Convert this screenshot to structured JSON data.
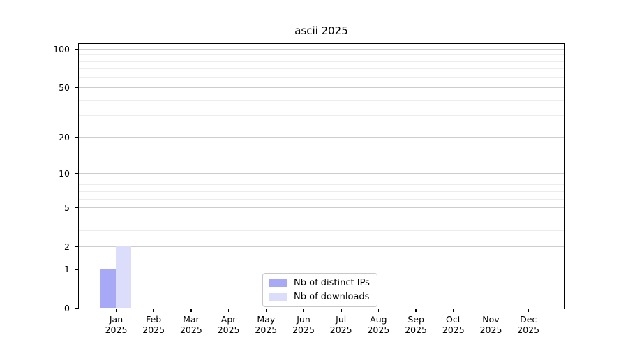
{
  "chart_data": {
    "type": "bar",
    "title": "ascii 2025",
    "categories": [
      "Jan 2025",
      "Feb 2025",
      "Mar 2025",
      "Apr 2025",
      "May 2025",
      "Jun 2025",
      "Jul 2025",
      "Aug 2025",
      "Sep 2025",
      "Oct 2025",
      "Nov 2025",
      "Dec 2025"
    ],
    "series": [
      {
        "name": "Nb of distinct IPs",
        "color": "#a7a8f6",
        "values": [
          1,
          0,
          0,
          0,
          0,
          0,
          0,
          0,
          0,
          0,
          0,
          0
        ]
      },
      {
        "name": "Nb of downloads",
        "color": "#dbddfb",
        "values": [
          2,
          0,
          0,
          0,
          0,
          0,
          0,
          0,
          0,
          0,
          0,
          0
        ]
      }
    ],
    "yscale": "log1p",
    "ylim": [
      0,
      110
    ],
    "y_major_ticks": [
      0,
      1,
      2,
      5,
      10,
      20,
      50,
      100
    ],
    "y_minor_ticks": [
      3,
      4,
      6,
      7,
      8,
      9,
      30,
      40,
      60,
      70,
      80,
      90
    ],
    "grid": true,
    "legend_position": "lower center",
    "colors": {
      "grid_major": "#cdcdcd",
      "grid_minor": "#ececec",
      "axis": "#000000",
      "legend_border": "#c8c8c8",
      "text": "#000000"
    }
  }
}
